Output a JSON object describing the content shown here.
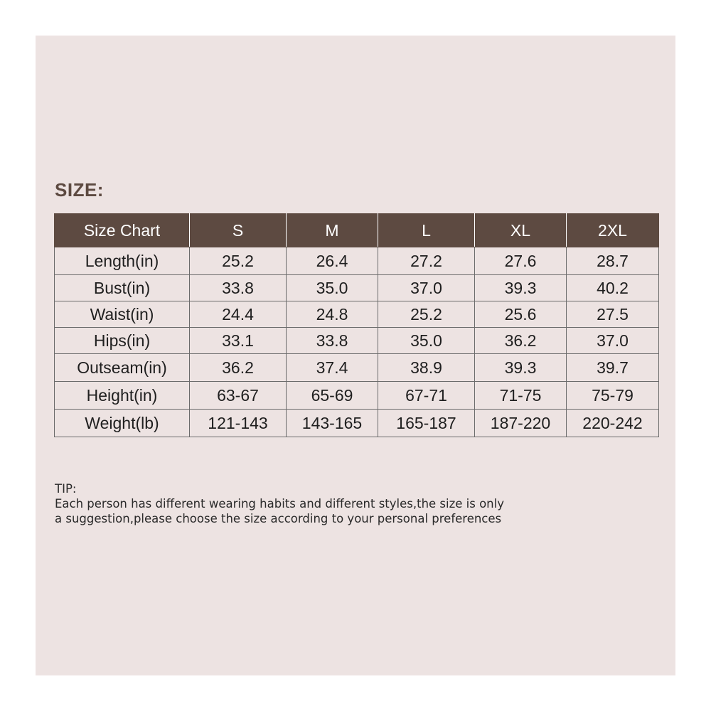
{
  "title": "SIZE:",
  "table": {
    "headers": [
      "Size Chart",
      "S",
      "M",
      "L",
      "XL",
      "2XL"
    ],
    "rows": [
      {
        "label": "Length(in)",
        "values": [
          "25.2",
          "26.4",
          "27.2",
          "27.6",
          "28.7"
        ]
      },
      {
        "label": "Bust(in)",
        "values": [
          "33.8",
          "35.0",
          "37.0",
          "39.3",
          "40.2"
        ]
      },
      {
        "label": "Waist(in)",
        "values": [
          "24.4",
          "24.8",
          "25.2",
          "25.6",
          "27.5"
        ]
      },
      {
        "label": "Hips(in)",
        "values": [
          "33.1",
          "33.8",
          "35.0",
          "36.2",
          "37.0"
        ]
      },
      {
        "label": "Outseam(in)",
        "values": [
          "36.2",
          "37.4",
          "38.9",
          "39.3",
          "39.7"
        ]
      },
      {
        "label": "Height(in)",
        "values": [
          "63-67",
          "65-69",
          "67-71",
          "71-75",
          "75-79"
        ]
      },
      {
        "label": "Weight(lb)",
        "values": [
          "121-143",
          "143-165",
          "165-187",
          "187-220",
          "220-242"
        ]
      }
    ]
  },
  "tip": {
    "heading": "TIP:",
    "line1": "Each person has different wearing habits and different styles,the size is only",
    "line2": "a suggestion,please choose the size according to your personal preferences"
  },
  "colors": {
    "background": "#ede3e2",
    "header_fill": "#5d4a41",
    "title_text": "#5d4a41"
  }
}
